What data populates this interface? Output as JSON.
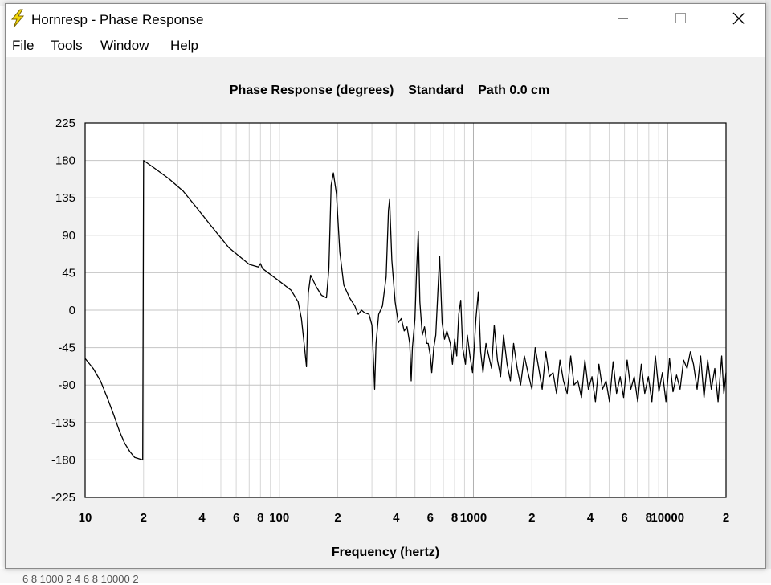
{
  "window": {
    "title": "Hornresp - Phase Response"
  },
  "menu": [
    "File",
    "Tools",
    "Window",
    "Help"
  ],
  "background_text": "6   8 1000    2         4    6   8 10000  2",
  "chart_data": {
    "type": "line",
    "title": "Phase Response (degrees)    Standard    Path 0.0 cm",
    "xlabel": "Frequency (hertz)",
    "ylabel": "",
    "xscale": "log",
    "xlim": [
      10,
      20000
    ],
    "ylim": [
      -225,
      225
    ],
    "yticks": [
      225,
      180,
      135,
      90,
      45,
      0,
      -45,
      -90,
      -135,
      -180,
      -225
    ],
    "xticks": [
      {
        "value": 10,
        "label": "10"
      },
      {
        "value": 20,
        "label": "2"
      },
      {
        "value": 40,
        "label": "4"
      },
      {
        "value": 60,
        "label": "6"
      },
      {
        "value": 80,
        "label": "8"
      },
      {
        "value": 100,
        "label": "100"
      },
      {
        "value": 200,
        "label": "2"
      },
      {
        "value": 400,
        "label": "4"
      },
      {
        "value": 600,
        "label": "6"
      },
      {
        "value": 800,
        "label": "8"
      },
      {
        "value": 1000,
        "label": "1000"
      },
      {
        "value": 2000,
        "label": "2"
      },
      {
        "value": 4000,
        "label": "4"
      },
      {
        "value": 6000,
        "label": "6"
      },
      {
        "value": 8000,
        "label": "8"
      },
      {
        "value": 10000,
        "label": "10000"
      },
      {
        "value": 20000,
        "label": "2"
      }
    ],
    "grid": true,
    "series": [
      {
        "color": "#000000",
        "points": [
          [
            10,
            -58
          ],
          [
            11,
            -70
          ],
          [
            12,
            -85
          ],
          [
            13,
            -105
          ],
          [
            14,
            -125
          ],
          [
            15,
            -145
          ],
          [
            16,
            -160
          ],
          [
            17,
            -170
          ],
          [
            18,
            -177
          ],
          [
            19.8,
            -180
          ],
          [
            20,
            180
          ],
          [
            23,
            170
          ],
          [
            27,
            158
          ],
          [
            32,
            143
          ],
          [
            37,
            125
          ],
          [
            45,
            100
          ],
          [
            55,
            75
          ],
          [
            70,
            55
          ],
          [
            78,
            52
          ],
          [
            80,
            56
          ],
          [
            82,
            50
          ],
          [
            100,
            35
          ],
          [
            115,
            24
          ],
          [
            125,
            10
          ],
          [
            130,
            -10
          ],
          [
            135,
            -45
          ],
          [
            138,
            -68
          ],
          [
            141,
            20
          ],
          [
            145,
            42
          ],
          [
            155,
            28
          ],
          [
            165,
            18
          ],
          [
            175,
            15
          ],
          [
            180,
            50
          ],
          [
            185,
            150
          ],
          [
            190,
            165
          ],
          [
            197,
            140
          ],
          [
            205,
            70
          ],
          [
            215,
            30
          ],
          [
            230,
            15
          ],
          [
            245,
            5
          ],
          [
            255,
            -5
          ],
          [
            265,
            0
          ],
          [
            275,
            -3
          ],
          [
            290,
            -5
          ],
          [
            300,
            -18
          ],
          [
            305,
            -55
          ],
          [
            310,
            -95
          ],
          [
            315,
            -40
          ],
          [
            325,
            -5
          ],
          [
            340,
            5
          ],
          [
            355,
            40
          ],
          [
            365,
            120
          ],
          [
            370,
            133
          ],
          [
            380,
            60
          ],
          [
            395,
            10
          ],
          [
            410,
            -15
          ],
          [
            425,
            -10
          ],
          [
            440,
            -25
          ],
          [
            455,
            -20
          ],
          [
            470,
            -40
          ],
          [
            478,
            -85
          ],
          [
            485,
            -45
          ],
          [
            500,
            -10
          ],
          [
            510,
            50
          ],
          [
            520,
            95
          ],
          [
            530,
            10
          ],
          [
            545,
            -30
          ],
          [
            560,
            -20
          ],
          [
            575,
            -40
          ],
          [
            585,
            -40
          ],
          [
            600,
            -55
          ],
          [
            610,
            -75
          ],
          [
            625,
            -45
          ],
          [
            640,
            -30
          ],
          [
            655,
            20
          ],
          [
            670,
            65
          ],
          [
            690,
            -15
          ],
          [
            710,
            -35
          ],
          [
            730,
            -25
          ],
          [
            760,
            -40
          ],
          [
            780,
            -65
          ],
          [
            800,
            -35
          ],
          [
            820,
            -55
          ],
          [
            840,
            -5
          ],
          [
            860,
            12
          ],
          [
            880,
            -45
          ],
          [
            910,
            -65
          ],
          [
            930,
            -30
          ],
          [
            960,
            -55
          ],
          [
            990,
            -75
          ],
          [
            1010,
            -45
          ],
          [
            1030,
            -10
          ],
          [
            1060,
            22
          ],
          [
            1090,
            -50
          ],
          [
            1120,
            -75
          ],
          [
            1160,
            -40
          ],
          [
            1200,
            -55
          ],
          [
            1240,
            -70
          ],
          [
            1280,
            -18
          ],
          [
            1330,
            -60
          ],
          [
            1380,
            -80
          ],
          [
            1430,
            -30
          ],
          [
            1490,
            -65
          ],
          [
            1550,
            -85
          ],
          [
            1610,
            -40
          ],
          [
            1680,
            -70
          ],
          [
            1750,
            -90
          ],
          [
            1830,
            -55
          ],
          [
            1910,
            -75
          ],
          [
            2000,
            -95
          ],
          [
            2080,
            -45
          ],
          [
            2170,
            -70
          ],
          [
            2260,
            -95
          ],
          [
            2360,
            -50
          ],
          [
            2460,
            -80
          ],
          [
            2570,
            -75
          ],
          [
            2680,
            -100
          ],
          [
            2790,
            -60
          ],
          [
            2910,
            -85
          ],
          [
            3040,
            -100
          ],
          [
            3170,
            -55
          ],
          [
            3300,
            -90
          ],
          [
            3450,
            -85
          ],
          [
            3600,
            -105
          ],
          [
            3750,
            -60
          ],
          [
            3910,
            -95
          ],
          [
            4080,
            -80
          ],
          [
            4250,
            -110
          ],
          [
            4430,
            -65
          ],
          [
            4620,
            -95
          ],
          [
            4820,
            -85
          ],
          [
            5020,
            -110
          ],
          [
            5240,
            -62
          ],
          [
            5460,
            -100
          ],
          [
            5700,
            -80
          ],
          [
            5940,
            -105
          ],
          [
            6190,
            -60
          ],
          [
            6460,
            -95
          ],
          [
            6730,
            -80
          ],
          [
            7020,
            -110
          ],
          [
            7320,
            -65
          ],
          [
            7630,
            -100
          ],
          [
            7960,
            -80
          ],
          [
            8300,
            -110
          ],
          [
            8650,
            -55
          ],
          [
            9020,
            -98
          ],
          [
            9410,
            -75
          ],
          [
            9810,
            -110
          ],
          [
            10230,
            -58
          ],
          [
            10670,
            -98
          ],
          [
            11120,
            -78
          ],
          [
            11600,
            -95
          ],
          [
            12100,
            -60
          ],
          [
            12600,
            -70
          ],
          [
            13100,
            -50
          ],
          [
            13600,
            -65
          ],
          [
            14200,
            -95
          ],
          [
            14800,
            -55
          ],
          [
            15400,
            -105
          ],
          [
            16100,
            -60
          ],
          [
            16800,
            -95
          ],
          [
            17500,
            -70
          ],
          [
            18200,
            -110
          ],
          [
            19000,
            -55
          ],
          [
            19500,
            -100
          ],
          [
            20000,
            -75
          ]
        ]
      }
    ]
  }
}
